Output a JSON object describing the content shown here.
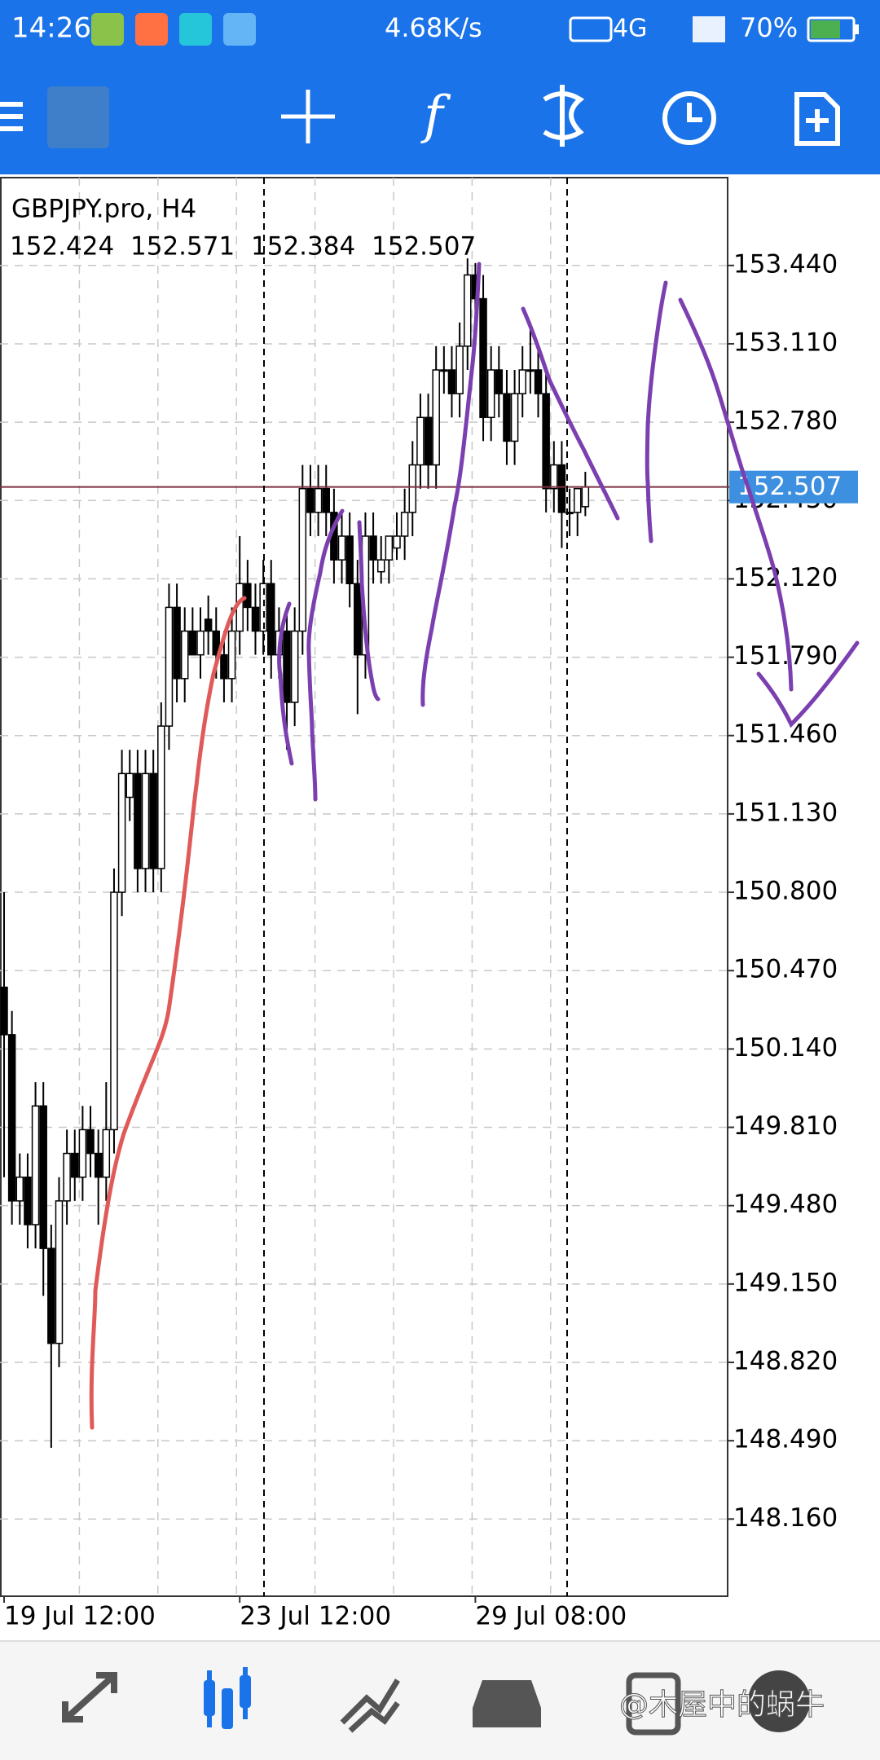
{
  "status_bar": {
    "time": "14:26",
    "speed": "4.68K/s",
    "network": "4G",
    "battery": "70%"
  },
  "chart_data": {
    "type": "candlestick",
    "title": "GBPJPY.pro, H4",
    "categories": [
      "19 Jul 12:00",
      null,
      null,
      null,
      null,
      null,
      null,
      null,
      null,
      null,
      null,
      null,
      null,
      null,
      null,
      null,
      null,
      null,
      null,
      null,
      null,
      null,
      null,
      null,
      null,
      null,
      null,
      null,
      null,
      null,
      "23 Jul 12:00",
      null,
      null,
      null,
      null,
      null,
      null,
      null,
      null,
      null,
      null,
      null,
      null,
      null,
      null,
      null,
      null,
      null,
      null,
      null,
      null,
      null,
      null,
      null,
      null,
      null,
      null,
      null,
      null,
      null,
      "29 Jul 08:00",
      null,
      null,
      null,
      null,
      null,
      null,
      null,
      null,
      null,
      null,
      null,
      null,
      null,
      null
    ],
    "open": [
      150.4,
      150.2,
      149.5,
      149.6,
      149.4,
      149.9,
      149.3,
      148.9,
      149.5,
      149.7,
      149.6,
      149.8,
      149.7,
      149.6,
      149.8,
      150.8,
      151.2,
      151.3,
      150.9,
      151.3,
      150.9,
      151.5,
      152.0,
      151.7,
      151.9,
      151.8,
      151.95,
      151.9,
      151.8,
      151.7,
      151.9,
      152.1,
      152.0,
      151.9,
      152.1,
      151.8,
      151.9,
      151.6,
      151.9,
      152.5,
      152.4,
      152.5,
      152.4,
      152.2,
      152.3,
      152.1,
      151.8,
      152.3,
      152.15,
      152.2,
      152.25,
      152.3,
      152.4,
      152.6,
      152.8,
      152.6,
      153.0,
      153.0,
      152.9,
      153.1,
      153.4,
      153.3,
      152.8,
      153.0,
      152.9,
      152.7,
      152.9,
      153.0,
      153.0,
      152.9,
      152.5,
      152.6,
      152.4,
      152.4,
      152.424
    ],
    "high": [
      150.8,
      150.3,
      149.7,
      149.7,
      150.0,
      150.0,
      149.4,
      149.6,
      149.8,
      149.8,
      149.9,
      149.9,
      149.8,
      150.0,
      150.9,
      151.4,
      151.4,
      151.4,
      151.4,
      151.4,
      151.6,
      152.1,
      152.1,
      152.0,
      152.0,
      152.0,
      152.05,
      152.0,
      151.9,
      152.0,
      152.3,
      152.2,
      152.1,
      152.2,
      152.2,
      152.0,
      152.0,
      152.0,
      152.6,
      152.6,
      152.6,
      152.6,
      152.5,
      152.4,
      152.4,
      152.2,
      152.4,
      152.4,
      152.3,
      152.3,
      152.4,
      152.5,
      152.7,
      152.9,
      152.9,
      153.1,
      153.1,
      153.1,
      153.2,
      153.47,
      153.45,
      153.4,
      153.1,
      153.1,
      153.0,
      153.0,
      153.1,
      153.2,
      153.1,
      153.0,
      152.7,
      152.7,
      152.5,
      152.5,
      152.571
    ],
    "low": [
      149.6,
      149.4,
      149.4,
      149.3,
      149.3,
      149.1,
      148.46,
      148.8,
      149.4,
      149.5,
      149.5,
      149.6,
      149.4,
      149.5,
      149.7,
      150.7,
      151.1,
      150.8,
      150.8,
      150.8,
      150.8,
      151.4,
      151.6,
      151.6,
      151.8,
      151.7,
      151.8,
      151.7,
      151.6,
      151.6,
      151.8,
      151.9,
      151.8,
      151.8,
      151.7,
      151.7,
      151.4,
      151.5,
      151.8,
      152.3,
      152.3,
      152.3,
      152.1,
      152.1,
      152.0,
      151.55,
      151.7,
      152.1,
      152.1,
      152.1,
      152.2,
      152.2,
      152.3,
      152.5,
      152.5,
      152.5,
      152.9,
      152.8,
      152.8,
      153.0,
      153.2,
      152.7,
      152.7,
      152.8,
      152.6,
      152.6,
      152.8,
      152.9,
      152.8,
      152.4,
      152.4,
      152.25,
      152.3,
      152.3,
      152.384
    ],
    "close": [
      150.2,
      149.5,
      149.6,
      149.4,
      149.9,
      149.3,
      148.9,
      149.5,
      149.7,
      149.6,
      149.8,
      149.7,
      149.6,
      149.8,
      150.8,
      151.3,
      151.3,
      150.9,
      151.3,
      150.9,
      151.5,
      152.0,
      151.7,
      151.9,
      151.8,
      151.9,
      151.9,
      151.8,
      151.7,
      151.9,
      152.1,
      152.0,
      151.9,
      152.1,
      151.8,
      151.9,
      151.6,
      151.9,
      152.5,
      152.4,
      152.5,
      152.4,
      152.2,
      152.3,
      152.1,
      151.8,
      152.3,
      152.2,
      152.2,
      152.3,
      152.3,
      152.4,
      152.6,
      152.8,
      152.6,
      153.0,
      153.0,
      152.9,
      153.1,
      153.4,
      153.3,
      152.8,
      153.0,
      152.9,
      152.7,
      152.9,
      153.0,
      153.0,
      152.9,
      152.5,
      152.6,
      152.4,
      152.4,
      152.5,
      152.507
    ],
    "up_color": "#ffffff",
    "down_color": "#000000",
    "price_color": "#3d8fe0",
    "ylim": [
      147.835,
      153.81
    ],
    "yticks": [
      {
        "value": 153.44,
        "label": "153.440"
      },
      {
        "value": 153.11,
        "label": "153.110"
      },
      {
        "value": 152.78,
        "label": "152.780"
      },
      {
        "value": 152.45,
        "label": "152.450"
      },
      {
        "value": 152.12,
        "label": "152.120"
      },
      {
        "value": 151.79,
        "label": "151.790"
      },
      {
        "value": 151.46,
        "label": "151.460"
      },
      {
        "value": 151.13,
        "label": "151.130"
      },
      {
        "value": 150.8,
        "label": "150.800"
      },
      {
        "value": 150.47,
        "label": "150.470"
      },
      {
        "value": 150.14,
        "label": "150.140"
      },
      {
        "value": 149.81,
        "label": "149.810"
      },
      {
        "value": 149.48,
        "label": "149.480"
      },
      {
        "value": 149.15,
        "label": "149.150"
      },
      {
        "value": 148.82,
        "label": "148.820"
      },
      {
        "value": 148.49,
        "label": "148.490"
      },
      {
        "value": 148.16,
        "label": "148.160"
      }
    ],
    "grid": true
  },
  "watermark": "@木屋中的蜗牛"
}
